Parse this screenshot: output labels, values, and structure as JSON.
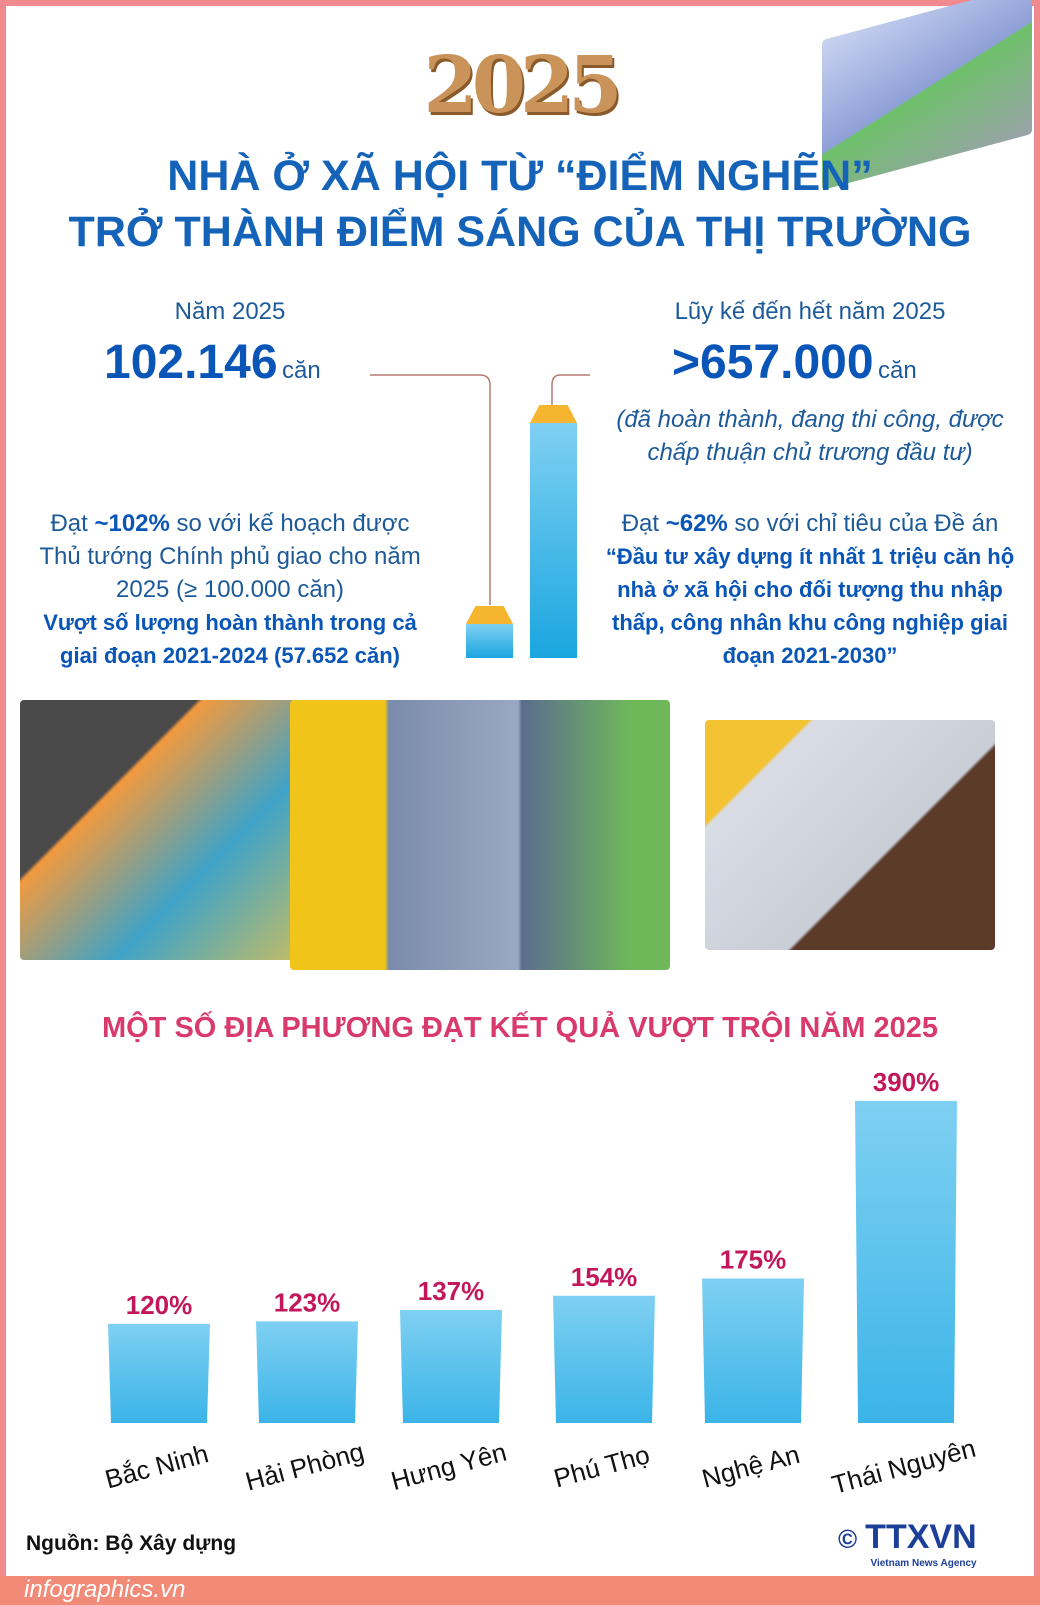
{
  "header": {
    "year": "2025",
    "title_line1": "NHÀ Ở XÃ HỘI TỪ “ĐIỂM NGHẼN”",
    "title_line2": "TRỞ THÀNH ĐIỂM SÁNG CỦA THỊ TRƯỜNG"
  },
  "left": {
    "label": "Năm 2025",
    "value": "102.146",
    "unit": "căn",
    "text1": "Đạt ",
    "pct": "~102%",
    "text2": " so với kế hoạch được Thủ tướng Chính phủ giao cho năm 2025 (≥ 100.000 căn)",
    "bold": "Vượt số lượng hoàn thành trong cả giai đoạn 2021-2024 (57.652 căn)"
  },
  "right": {
    "label": "Lũy kế đến hết năm 2025",
    "value": ">657.000",
    "unit": "căn",
    "note": "(đã hoàn thành, đang thi công, được chấp thuận chủ trương đầu tư)",
    "text1": "Đạt ",
    "pct": "~62%",
    "text2": " so với chỉ tiêu của Đề án",
    "bold": "“Đầu tư xây dựng ít nhất 1 triệu căn hộ nhà ở xã hội cho đối tượng thu nhập thấp, công nhân khu công nghiệp giai đoạn 2021-2030”"
  },
  "chart_data": {
    "type": "bar",
    "title": "MỘT SỐ ĐỊA PHƯƠNG ĐẠT KẾT QUẢ VƯỢT TRỘI NĂM 2025",
    "categories": [
      "Bắc Ninh",
      "Hải Phòng",
      "Hưng Yên",
      "Phú Thọ",
      "Nghệ An",
      "Thái Nguyên"
    ],
    "values": [
      120,
      123,
      137,
      154,
      175,
      390
    ],
    "labels": [
      "120%",
      "123%",
      "137%",
      "154%",
      "175%",
      "390%"
    ],
    "unit": "%",
    "bar_color": "#3bb4e8",
    "label_color": "#c2185b"
  },
  "footer": {
    "source": "Nguồn: Bộ Xây dựng",
    "site": "infographics.vn",
    "logo": "TTXVN",
    "logo_sub": "Vietnam News Agency",
    "copyright": "©"
  }
}
